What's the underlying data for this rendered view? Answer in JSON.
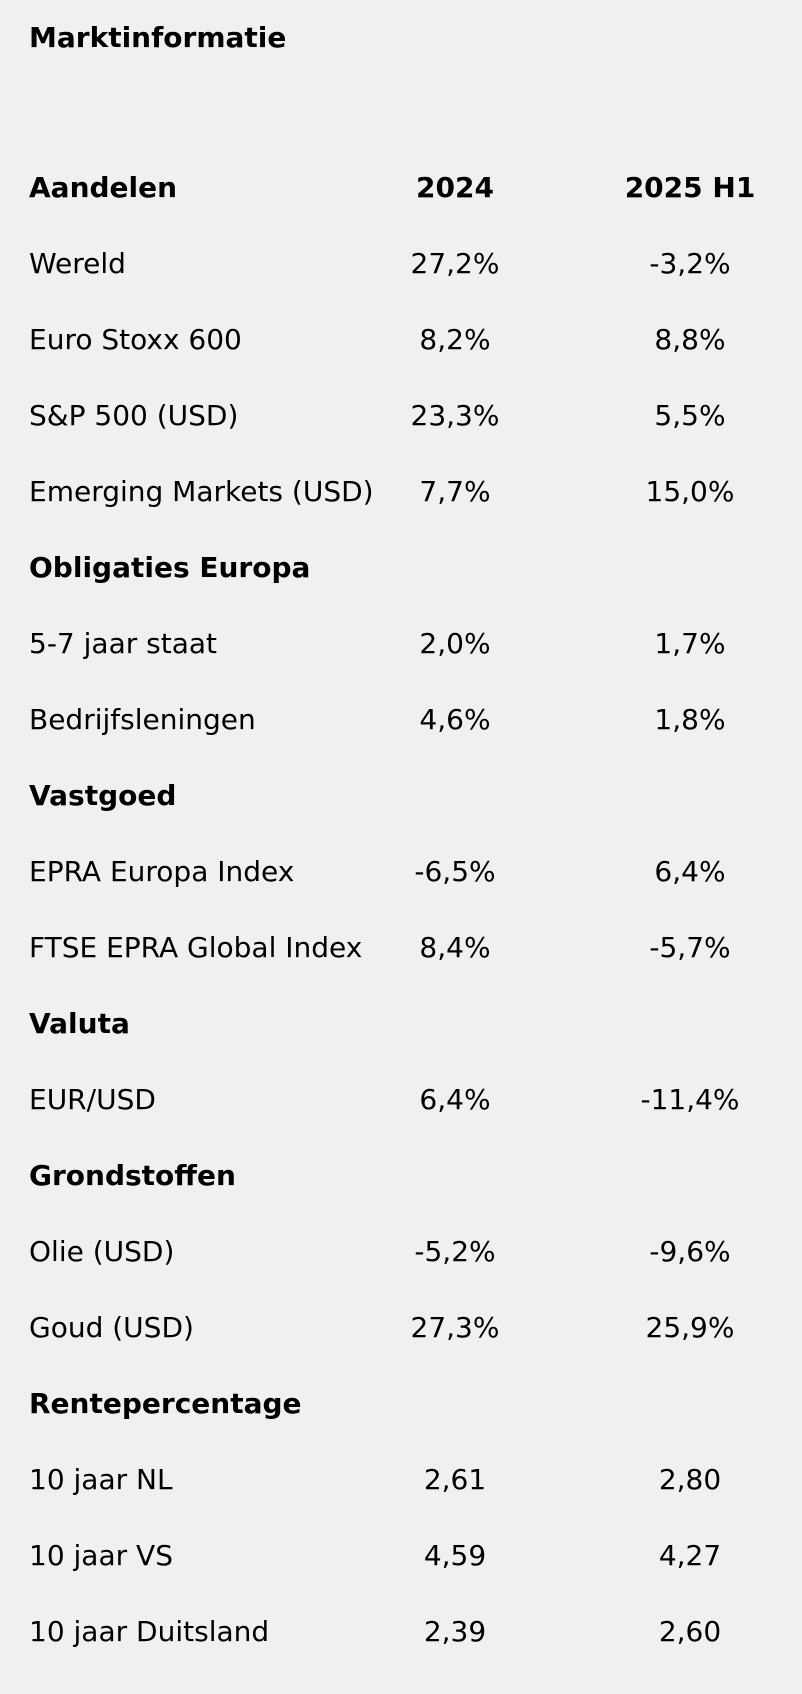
{
  "title": "Marktinformatie",
  "header": {
    "label": "Aandelen",
    "col_2024": "2024",
    "col_2025": "2025 H1"
  },
  "rows": [
    {
      "label": "Wereld",
      "v2024": "27,2%",
      "v2025": "-3,2%"
    },
    {
      "label": "Euro Stoxx 600",
      "v2024": "8,2%",
      "v2025": "8,8%"
    },
    {
      "label": "S&P 500 (USD)",
      "v2024": "23,3%",
      "v2025": "5,5%"
    },
    {
      "label": "Emerging Markets (USD)",
      "v2024": "7,7%",
      "v2025": "15,0%"
    },
    {
      "label": "Obligaties Europa"
    },
    {
      "label": "5-7 jaar staat",
      "v2024": "2,0%",
      "v2025": "1,7%"
    },
    {
      "label": "Bedrijfsleningen",
      "v2024": "4,6%",
      "v2025": "1,8%"
    },
    {
      "label": "Vastgoed"
    },
    {
      "label": "EPRA Europa Index",
      "v2024": "-6,5%",
      "v2025": "6,4%"
    },
    {
      "label": "FTSE EPRA Global Index",
      "v2024": "8,4%",
      "v2025": "-5,7%"
    },
    {
      "label": "Valuta"
    },
    {
      "label": "EUR/USD",
      "v2024": "6,4%",
      "v2025": "-11,4%"
    },
    {
      "label": "Grondstoffen"
    },
    {
      "label": "Olie (USD)",
      "v2024": "-5,2%",
      "v2025": "-9,6%"
    },
    {
      "label": "Goud (USD)",
      "v2024": "27,3%",
      "v2025": "25,9%"
    },
    {
      "label": "Rentepercentage"
    },
    {
      "label": "10 jaar NL",
      "v2024": "2,61",
      "v2025": "2,80"
    },
    {
      "label": "10 jaar VS",
      "v2024": "4,59",
      "v2025": "4,27"
    },
    {
      "label": "10 jaar Duitsland",
      "v2024": "2,39",
      "v2025": "2,60"
    }
  ]
}
